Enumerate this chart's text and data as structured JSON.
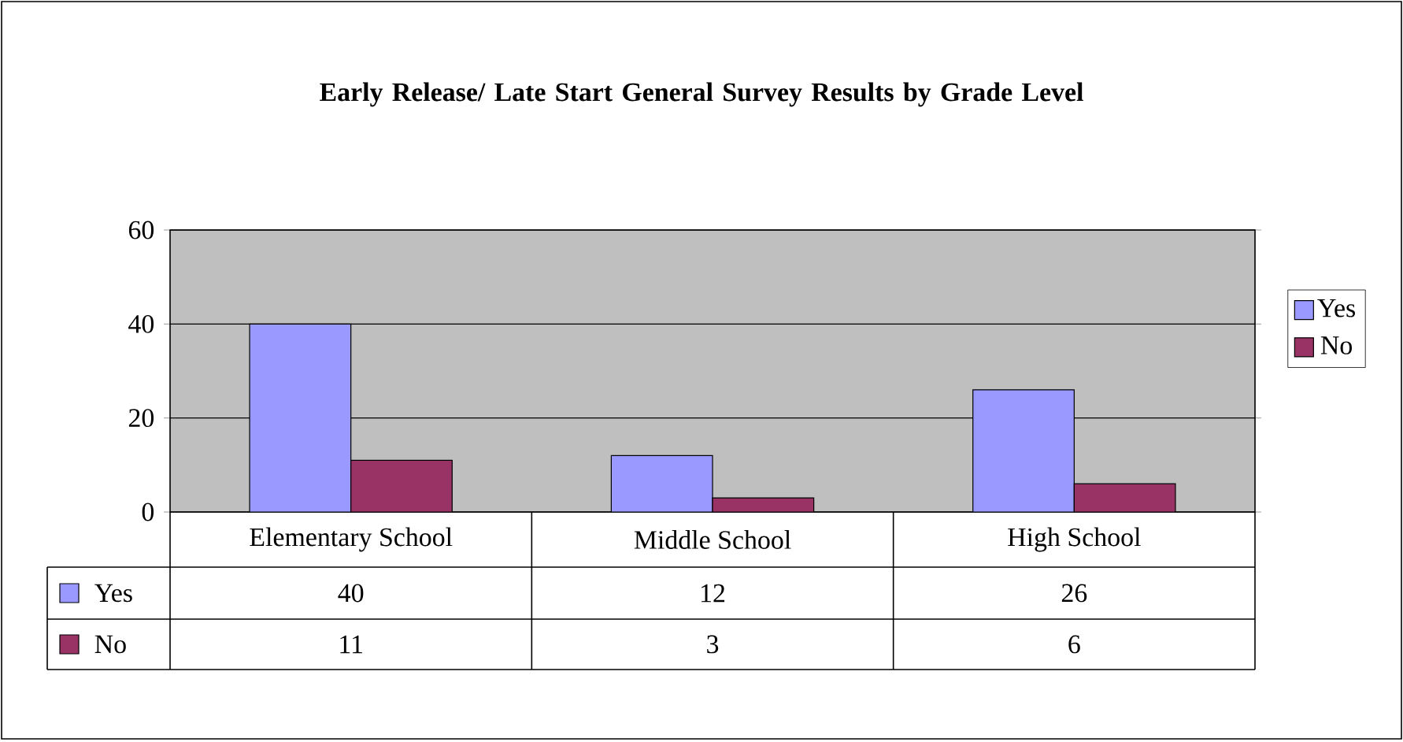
{
  "chart_data": {
    "type": "bar",
    "title": "Early Release/ Late Start General Survey Results by Grade Level",
    "categories": [
      "Elementary School",
      "Middle School",
      "High School"
    ],
    "series": [
      {
        "name": "Yes",
        "color": "#9999ff",
        "values": [
          40,
          12,
          26
        ]
      },
      {
        "name": "No",
        "color": "#993366",
        "values": [
          11,
          3,
          6
        ]
      }
    ],
    "ylim": [
      0,
      60
    ],
    "yticks": [
      0,
      20,
      40,
      60
    ],
    "grid": "y",
    "legend": "right",
    "data_labels": true
  }
}
